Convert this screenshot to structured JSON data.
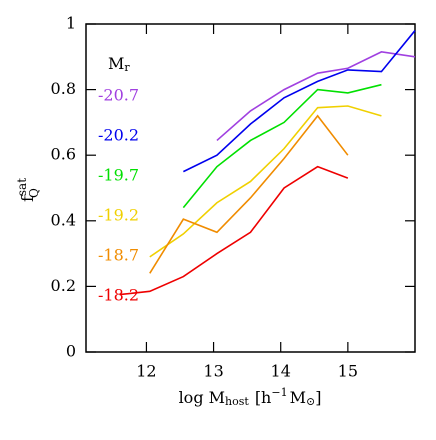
{
  "chart_data": {
    "type": "line",
    "xlabel": {
      "main": "log M",
      "sub": "host",
      "open": "[h",
      "sup": "−1",
      "unit": "M",
      "sun": "⊙",
      "close": "]"
    },
    "ylabel": {
      "main": "f",
      "sup": "sat",
      "sub": "Q"
    },
    "legend_title": {
      "main": "M",
      "sub": "r"
    },
    "x": [
      11.6,
      12.05,
      12.55,
      13.05,
      13.55,
      14.05,
      14.55,
      15.0,
      15.5,
      16.0
    ],
    "series": [
      {
        "name": "-20.7",
        "color": "#a040e0",
        "values": [
          null,
          null,
          null,
          0.645,
          0.735,
          0.8,
          0.85,
          0.865,
          0.915,
          0.9
        ]
      },
      {
        "name": "-20.2",
        "color": "#0000ee",
        "values": [
          null,
          null,
          0.55,
          0.6,
          0.695,
          0.775,
          0.825,
          0.86,
          0.855,
          0.98
        ]
      },
      {
        "name": "-19.7",
        "color": "#00e000",
        "values": [
          null,
          null,
          0.44,
          0.565,
          0.645,
          0.7,
          0.8,
          0.79,
          0.815,
          null
        ]
      },
      {
        "name": "-19.2",
        "color": "#f0d000",
        "values": [
          null,
          0.29,
          0.36,
          0.455,
          0.52,
          0.62,
          0.745,
          0.75,
          0.72,
          null
        ]
      },
      {
        "name": "-18.7",
        "color": "#f08c00",
        "values": [
          null,
          0.24,
          0.405,
          0.365,
          0.47,
          0.59,
          0.72,
          0.6,
          null,
          null
        ]
      },
      {
        "name": "-18.2",
        "color": "#ee0000",
        "values": [
          0.175,
          0.185,
          0.23,
          0.3,
          0.365,
          0.5,
          0.565,
          0.53,
          null,
          null
        ]
      }
    ],
    "xlim": [
      11.1,
      16.0
    ],
    "xticks": [
      12,
      13,
      14,
      15
    ],
    "ylim": [
      0,
      1
    ],
    "yticks": [
      0,
      0.2,
      0.4,
      0.6,
      0.8,
      1
    ]
  }
}
